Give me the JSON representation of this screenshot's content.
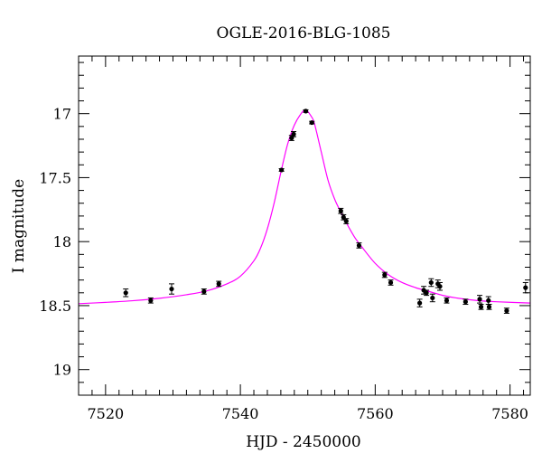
{
  "chart_data": {
    "type": "scatter",
    "title": "OGLE-2016-BLG-1085",
    "xlabel": "HJD - 2450000",
    "ylabel": "I magnitude",
    "xlim": [
      7516,
      7583
    ],
    "ylim": [
      19.2,
      16.55
    ],
    "y_inverted": true,
    "grid": false,
    "x_ticks": [
      {
        "value": 7520,
        "label": "7520"
      },
      {
        "value": 7540,
        "label": "7540"
      },
      {
        "value": 7560,
        "label": "7560"
      },
      {
        "value": 7580,
        "label": "7580"
      }
    ],
    "y_ticks": [
      {
        "value": 17.0,
        "label": "17"
      },
      {
        "value": 17.5,
        "label": "17.5"
      },
      {
        "value": 18.0,
        "label": "18"
      },
      {
        "value": 18.5,
        "label": "18.5"
      },
      {
        "value": 19.0,
        "label": "19"
      }
    ],
    "x_minor_step": 2,
    "y_minor_step": 0.1,
    "colors": {
      "points": "#000000",
      "model": "#ff00ff",
      "axes": "#000000"
    },
    "series": [
      {
        "kind": "points",
        "points": [
          {
            "x": 7523.0,
            "y": 18.4,
            "err": 0.03
          },
          {
            "x": 7526.7,
            "y": 18.46,
            "err": 0.02
          },
          {
            "x": 7529.8,
            "y": 18.37,
            "err": 0.04
          },
          {
            "x": 7534.6,
            "y": 18.39,
            "err": 0.02
          },
          {
            "x": 7536.8,
            "y": 18.33,
            "err": 0.02
          },
          {
            "x": 7546.1,
            "y": 17.44,
            "err": 0.01
          },
          {
            "x": 7547.6,
            "y": 17.19,
            "err": 0.02
          },
          {
            "x": 7547.9,
            "y": 17.16,
            "err": 0.02
          },
          {
            "x": 7549.7,
            "y": 16.98,
            "err": 0.01
          },
          {
            "x": 7550.6,
            "y": 17.07,
            "err": 0.01
          },
          {
            "x": 7554.9,
            "y": 17.76,
            "err": 0.02
          },
          {
            "x": 7555.3,
            "y": 17.81,
            "err": 0.02
          },
          {
            "x": 7555.7,
            "y": 17.84,
            "err": 0.02
          },
          {
            "x": 7557.6,
            "y": 18.03,
            "err": 0.02
          },
          {
            "x": 7561.4,
            "y": 18.26,
            "err": 0.02
          },
          {
            "x": 7562.3,
            "y": 18.32,
            "err": 0.02
          },
          {
            "x": 7566.6,
            "y": 18.48,
            "err": 0.03
          },
          {
            "x": 7567.2,
            "y": 18.38,
            "err": 0.03
          },
          {
            "x": 7567.6,
            "y": 18.4,
            "err": 0.02
          },
          {
            "x": 7568.3,
            "y": 18.32,
            "err": 0.03
          },
          {
            "x": 7568.5,
            "y": 18.44,
            "err": 0.03
          },
          {
            "x": 7569.3,
            "y": 18.33,
            "err": 0.03
          },
          {
            "x": 7569.6,
            "y": 18.35,
            "err": 0.03
          },
          {
            "x": 7570.6,
            "y": 18.46,
            "err": 0.02
          },
          {
            "x": 7573.4,
            "y": 18.47,
            "err": 0.02
          },
          {
            "x": 7575.5,
            "y": 18.45,
            "err": 0.03
          },
          {
            "x": 7575.7,
            "y": 18.51,
            "err": 0.02
          },
          {
            "x": 7576.8,
            "y": 18.46,
            "err": 0.03
          },
          {
            "x": 7576.9,
            "y": 18.51,
            "err": 0.02
          },
          {
            "x": 7579.5,
            "y": 18.54,
            "err": 0.02
          },
          {
            "x": 7582.3,
            "y": 18.36,
            "err": 0.04
          }
        ]
      },
      {
        "kind": "model",
        "samples": [
          {
            "x": 7516,
            "y": 18.485
          },
          {
            "x": 7520,
            "y": 18.475
          },
          {
            "x": 7524,
            "y": 18.462
          },
          {
            "x": 7528,
            "y": 18.443
          },
          {
            "x": 7532,
            "y": 18.415
          },
          {
            "x": 7535,
            "y": 18.385
          },
          {
            "x": 7538,
            "y": 18.33
          },
          {
            "x": 7540,
            "y": 18.27
          },
          {
            "x": 7542,
            "y": 18.15
          },
          {
            "x": 7543,
            "y": 18.05
          },
          {
            "x": 7544,
            "y": 17.9
          },
          {
            "x": 7545,
            "y": 17.7
          },
          {
            "x": 7546,
            "y": 17.46
          },
          {
            "x": 7547,
            "y": 17.24
          },
          {
            "x": 7548,
            "y": 17.09
          },
          {
            "x": 7549,
            "y": 17.0
          },
          {
            "x": 7549.7,
            "y": 16.97
          },
          {
            "x": 7550.5,
            "y": 17.02
          },
          {
            "x": 7551,
            "y": 17.08
          },
          {
            "x": 7552,
            "y": 17.3
          },
          {
            "x": 7553,
            "y": 17.52
          },
          {
            "x": 7554,
            "y": 17.67
          },
          {
            "x": 7555,
            "y": 17.78
          },
          {
            "x": 7556,
            "y": 17.88
          },
          {
            "x": 7557,
            "y": 17.97
          },
          {
            "x": 7558,
            "y": 18.04
          },
          {
            "x": 7560,
            "y": 18.17
          },
          {
            "x": 7562,
            "y": 18.26
          },
          {
            "x": 7564,
            "y": 18.32
          },
          {
            "x": 7566,
            "y": 18.36
          },
          {
            "x": 7568,
            "y": 18.39
          },
          {
            "x": 7570,
            "y": 18.42
          },
          {
            "x": 7572,
            "y": 18.44
          },
          {
            "x": 7575,
            "y": 18.46
          },
          {
            "x": 7578,
            "y": 18.47
          },
          {
            "x": 7583,
            "y": 18.48
          }
        ]
      }
    ]
  }
}
